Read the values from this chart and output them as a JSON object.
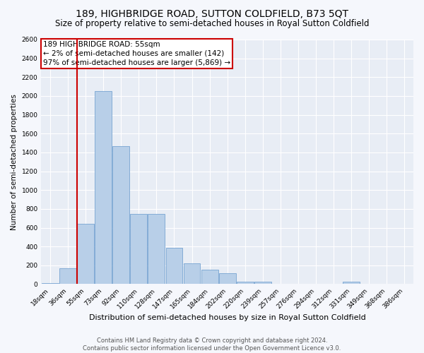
{
  "title": "189, HIGHBRIDGE ROAD, SUTTON COLDFIELD, B73 5QT",
  "subtitle": "Size of property relative to semi-detached houses in Royal Sutton Coldfield",
  "xlabel": "Distribution of semi-detached houses by size in Royal Sutton Coldfield",
  "ylabel": "Number of semi-detached properties",
  "footer_line1": "Contains HM Land Registry data © Crown copyright and database right 2024.",
  "footer_line2": "Contains public sector information licensed under the Open Government Licence v3.0.",
  "annotation_title": "189 HIGHBRIDGE ROAD: 55sqm",
  "annotation_line1": "← 2% of semi-detached houses are smaller (142)",
  "annotation_line2": "97% of semi-detached houses are larger (5,869) →",
  "bar_labels": [
    "18sqm",
    "36sqm",
    "55sqm",
    "73sqm",
    "92sqm",
    "110sqm",
    "128sqm",
    "147sqm",
    "165sqm",
    "184sqm",
    "202sqm",
    "220sqm",
    "239sqm",
    "257sqm",
    "276sqm",
    "294sqm",
    "312sqm",
    "331sqm",
    "349sqm",
    "368sqm",
    "386sqm"
  ],
  "bar_values": [
    10,
    170,
    640,
    2050,
    1470,
    750,
    750,
    390,
    220,
    155,
    120,
    30,
    25,
    5,
    5,
    5,
    5,
    30,
    5,
    5,
    5
  ],
  "bar_color": "#b8cfe8",
  "bar_edge_color": "#6699cc",
  "red_line_x": 1.5,
  "red_line_color": "#cc0000",
  "annotation_box_edge_color": "#cc0000",
  "ylim": [
    0,
    2600
  ],
  "yticks": [
    0,
    200,
    400,
    600,
    800,
    1000,
    1200,
    1400,
    1600,
    1800,
    2000,
    2200,
    2400,
    2600
  ],
  "background_color": "#f5f7fc",
  "plot_bg_color": "#e8edf5",
  "grid_color": "#ffffff",
  "title_fontsize": 10,
  "subtitle_fontsize": 8.5,
  "xlabel_fontsize": 8,
  "ylabel_fontsize": 7.5,
  "tick_fontsize": 6.5,
  "annotation_fontsize": 7.5,
  "footer_fontsize": 6
}
